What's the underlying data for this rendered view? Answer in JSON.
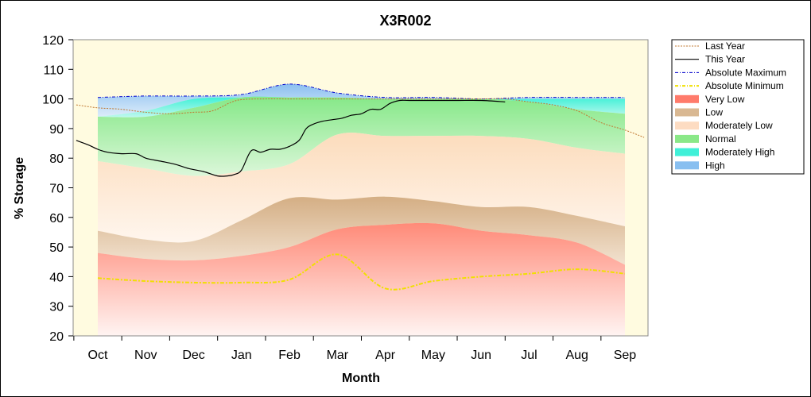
{
  "chart_data": {
    "type": "area",
    "title": "X3R002",
    "xlabel": "Month",
    "ylabel": "% Storage",
    "ylim": [
      20,
      120
    ],
    "yticks": [
      20,
      30,
      40,
      50,
      60,
      70,
      80,
      90,
      100,
      110,
      120
    ],
    "categories": [
      "Oct",
      "Nov",
      "Dec",
      "Jan",
      "Feb",
      "Mar",
      "Apr",
      "May",
      "Jun",
      "Jul",
      "Aug",
      "Sep"
    ],
    "legend_position": "right",
    "grid": false,
    "band_edges": {
      "x": [
        0,
        1,
        2,
        3,
        4,
        5,
        6,
        7,
        8,
        9,
        10,
        11
      ],
      "absolute_minimum": [
        39.5,
        38.5,
        38,
        38,
        39,
        47.5,
        36,
        38.5,
        40,
        41,
        42.5,
        41
      ],
      "very_low_top": [
        48,
        46,
        45.5,
        47,
        50,
        56,
        57.5,
        58,
        55.5,
        54,
        51.5,
        44
      ],
      "low_top": [
        55.5,
        52.5,
        52,
        59,
        66.5,
        66,
        67,
        65.5,
        63.5,
        63.5,
        60.5,
        57
      ],
      "moderately_low_top": [
        79,
        76.5,
        74,
        75.5,
        78,
        88,
        87.5,
        87.5,
        87.5,
        86.5,
        83.5,
        81.5
      ],
      "normal_top": [
        94,
        94,
        97,
        100.5,
        100.5,
        100.5,
        100,
        100,
        100,
        99,
        96.5,
        95
      ],
      "moderately_high_top": [
        94,
        96,
        100,
        100.5,
        100.5,
        100.5,
        100,
        100,
        100,
        100,
        100,
        100
      ],
      "absolute_maximum": [
        100.5,
        101,
        101,
        101.5,
        105,
        102,
        100.5,
        100.5,
        100,
        100.5,
        100.5,
        100.5
      ]
    },
    "series": [
      {
        "name": "Last Year",
        "x": [
          -0.45,
          0,
          0.5,
          1,
          1.5,
          2,
          2.4,
          2.9,
          3.5,
          4,
          5,
          6,
          7,
          8,
          8.5,
          9,
          9.5,
          10,
          10.5,
          11,
          11.4
        ],
        "values": [
          98,
          97,
          96.5,
          95.5,
          95,
          95.5,
          96,
          99.5,
          100,
          100,
          100,
          100,
          100,
          100,
          100,
          99,
          98,
          96,
          92,
          89.5,
          87
        ]
      },
      {
        "name": "This Year",
        "x": [
          -0.45,
          -0.2,
          0,
          0.2,
          0.5,
          0.8,
          1,
          1.3,
          1.6,
          1.9,
          2.2,
          2.5,
          2.7,
          2.85,
          3,
          3.2,
          3.4,
          3.6,
          3.8,
          4,
          4.2,
          4.35,
          4.5,
          4.7,
          4.9,
          5.1,
          5.3,
          5.5,
          5.7,
          5.9,
          6.1,
          6.3,
          6.5,
          7,
          7.5,
          8,
          8.5
        ],
        "values": [
          86,
          84.5,
          83,
          82,
          81.5,
          81.5,
          80,
          79,
          78,
          76.5,
          75.5,
          74,
          74,
          74.5,
          76,
          82.5,
          82,
          83,
          83,
          84,
          86,
          90,
          91.5,
          92.5,
          93,
          93.5,
          94.5,
          95,
          96.5,
          96.5,
          98.5,
          99.5,
          99.5,
          99.5,
          99.5,
          99.5,
          99
        ]
      }
    ],
    "legend": [
      {
        "name": "Last Year",
        "color": "#c07830",
        "style": "dot-line"
      },
      {
        "name": "This Year",
        "color": "#000000",
        "style": "line"
      },
      {
        "name": "Absolute Maximum",
        "color": "#0000cc",
        "style": "dash-dot-line"
      },
      {
        "name": "Absolute Minimum",
        "color": "#f0e000",
        "style": "dash-dot-line"
      },
      {
        "name": "Very Low",
        "color": "#ff7b6b",
        "style": "swatch"
      },
      {
        "name": "Low",
        "color": "#d9b892",
        "style": "swatch"
      },
      {
        "name": "Moderately Low",
        "color": "#fddcc2",
        "style": "swatch"
      },
      {
        "name": "Normal",
        "color": "#8ae888",
        "style": "swatch"
      },
      {
        "name": "Moderately High",
        "color": "#40f0d8",
        "style": "swatch"
      },
      {
        "name": "High",
        "color": "#88bff0",
        "style": "swatch"
      }
    ]
  }
}
